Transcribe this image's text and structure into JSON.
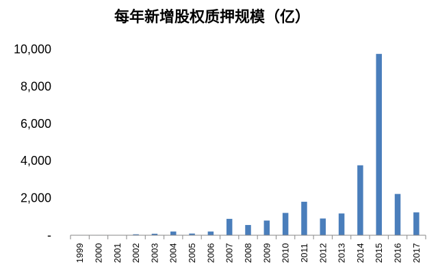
{
  "chart_data": {
    "type": "bar",
    "title": "每年新增股权质押规模（亿）",
    "xlabel": "",
    "ylabel": "",
    "categories": [
      "1999",
      "2000",
      "2001",
      "2002",
      "2003",
      "2004",
      "2005",
      "2006",
      "2007",
      "2008",
      "2009",
      "2010",
      "2011",
      "2012",
      "2013",
      "2014",
      "2015",
      "2016",
      "2017"
    ],
    "values": [
      3,
      3,
      5,
      50,
      80,
      200,
      90,
      200,
      880,
      550,
      790,
      1200,
      1800,
      900,
      1170,
      3760,
      9750,
      2220,
      1230
    ],
    "ylim": [
      0,
      10000
    ],
    "yticks": [
      "-",
      "2,000",
      "4,000",
      "6,000",
      "8,000",
      "10,000"
    ],
    "grid": false,
    "legend": "none",
    "bar_color": "#4a7ebb",
    "axis_color": "#868686"
  }
}
